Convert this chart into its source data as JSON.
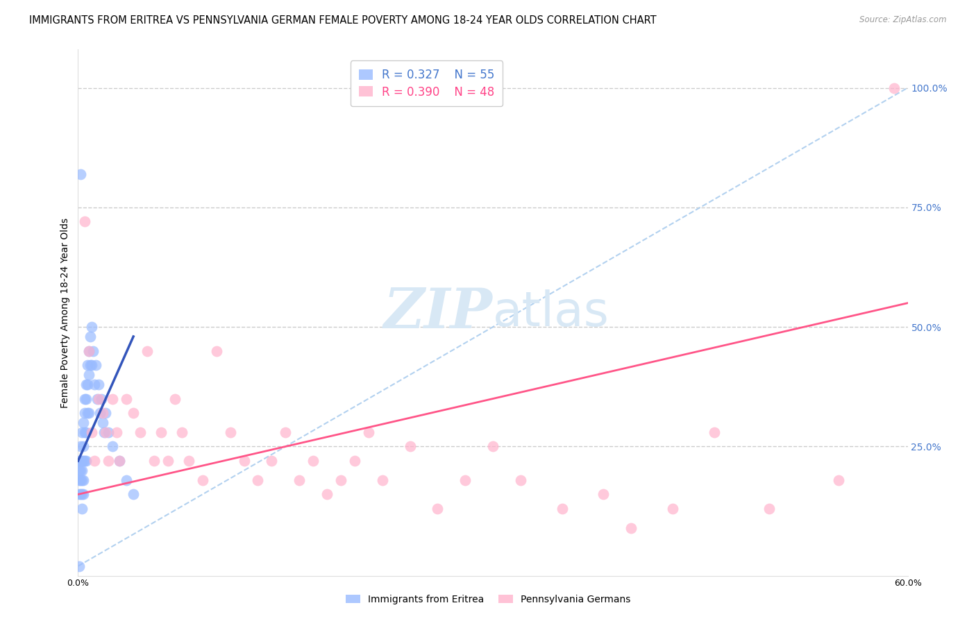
{
  "title": "IMMIGRANTS FROM ERITREA VS PENNSYLVANIA GERMAN FEMALE POVERTY AMONG 18-24 YEAR OLDS CORRELATION CHART",
  "source": "Source: ZipAtlas.com",
  "ylabel": "Female Poverty Among 18-24 Year Olds",
  "right_yticks": [
    "100.0%",
    "75.0%",
    "50.0%",
    "25.0%"
  ],
  "right_ytick_vals": [
    1.0,
    0.75,
    0.5,
    0.25
  ],
  "xlim": [
    0.0,
    0.6
  ],
  "ylim": [
    -0.02,
    1.08
  ],
  "legend1_R": "0.327",
  "legend1_N": "55",
  "legend2_R": "0.390",
  "legend2_N": "48",
  "blue_color": "#99BBFF",
  "pink_color": "#FFB3CC",
  "blue_line_color": "#3355BB",
  "pink_line_color": "#FF5588",
  "dashed_line_color": "#AACCEE",
  "title_fontsize": 10.5,
  "label_fontsize": 10,
  "tick_fontsize": 9,
  "legend_fontsize": 12,
  "watermark_color": "#D8E8F5",
  "blue_scatter_x": [
    0.001,
    0.001,
    0.001,
    0.001,
    0.002,
    0.002,
    0.002,
    0.002,
    0.002,
    0.003,
    0.003,
    0.003,
    0.003,
    0.003,
    0.003,
    0.004,
    0.004,
    0.004,
    0.004,
    0.004,
    0.005,
    0.005,
    0.005,
    0.005,
    0.006,
    0.006,
    0.006,
    0.006,
    0.007,
    0.007,
    0.007,
    0.008,
    0.008,
    0.008,
    0.009,
    0.009,
    0.01,
    0.01,
    0.011,
    0.012,
    0.013,
    0.014,
    0.015,
    0.016,
    0.017,
    0.018,
    0.019,
    0.02,
    0.022,
    0.025,
    0.03,
    0.035,
    0.04,
    0.002,
    0.001
  ],
  "blue_scatter_y": [
    0.2,
    0.22,
    0.18,
    0.15,
    0.25,
    0.2,
    0.18,
    0.22,
    0.15,
    0.28,
    0.22,
    0.2,
    0.18,
    0.15,
    0.12,
    0.3,
    0.25,
    0.22,
    0.18,
    0.15,
    0.35,
    0.32,
    0.28,
    0.22,
    0.38,
    0.35,
    0.28,
    0.22,
    0.42,
    0.38,
    0.32,
    0.45,
    0.4,
    0.32,
    0.48,
    0.42,
    0.5,
    0.42,
    0.45,
    0.38,
    0.42,
    0.35,
    0.38,
    0.32,
    0.35,
    0.3,
    0.28,
    0.32,
    0.28,
    0.25,
    0.22,
    0.18,
    0.15,
    0.82,
    0.0
  ],
  "pink_scatter_x": [
    0.005,
    0.008,
    0.01,
    0.012,
    0.015,
    0.018,
    0.02,
    0.022,
    0.025,
    0.028,
    0.03,
    0.035,
    0.04,
    0.045,
    0.05,
    0.055,
    0.06,
    0.065,
    0.07,
    0.075,
    0.08,
    0.09,
    0.1,
    0.11,
    0.12,
    0.13,
    0.14,
    0.15,
    0.16,
    0.17,
    0.18,
    0.19,
    0.2,
    0.21,
    0.22,
    0.24,
    0.26,
    0.28,
    0.3,
    0.32,
    0.35,
    0.38,
    0.4,
    0.43,
    0.46,
    0.5,
    0.55,
    0.59
  ],
  "pink_scatter_y": [
    0.72,
    0.45,
    0.28,
    0.22,
    0.35,
    0.32,
    0.28,
    0.22,
    0.35,
    0.28,
    0.22,
    0.35,
    0.32,
    0.28,
    0.45,
    0.22,
    0.28,
    0.22,
    0.35,
    0.28,
    0.22,
    0.18,
    0.45,
    0.28,
    0.22,
    0.18,
    0.22,
    0.28,
    0.18,
    0.22,
    0.15,
    0.18,
    0.22,
    0.28,
    0.18,
    0.25,
    0.12,
    0.18,
    0.25,
    0.18,
    0.12,
    0.15,
    0.08,
    0.12,
    0.28,
    0.12,
    0.18,
    1.0
  ],
  "blue_line_x": [
    0.0,
    0.04
  ],
  "blue_line_y": [
    0.22,
    0.48
  ],
  "pink_line_x": [
    0.0,
    0.6
  ],
  "pink_line_y": [
    0.15,
    0.55
  ],
  "diag_line_x": [
    0.0,
    0.6
  ],
  "diag_line_y": [
    0.0,
    1.0
  ]
}
